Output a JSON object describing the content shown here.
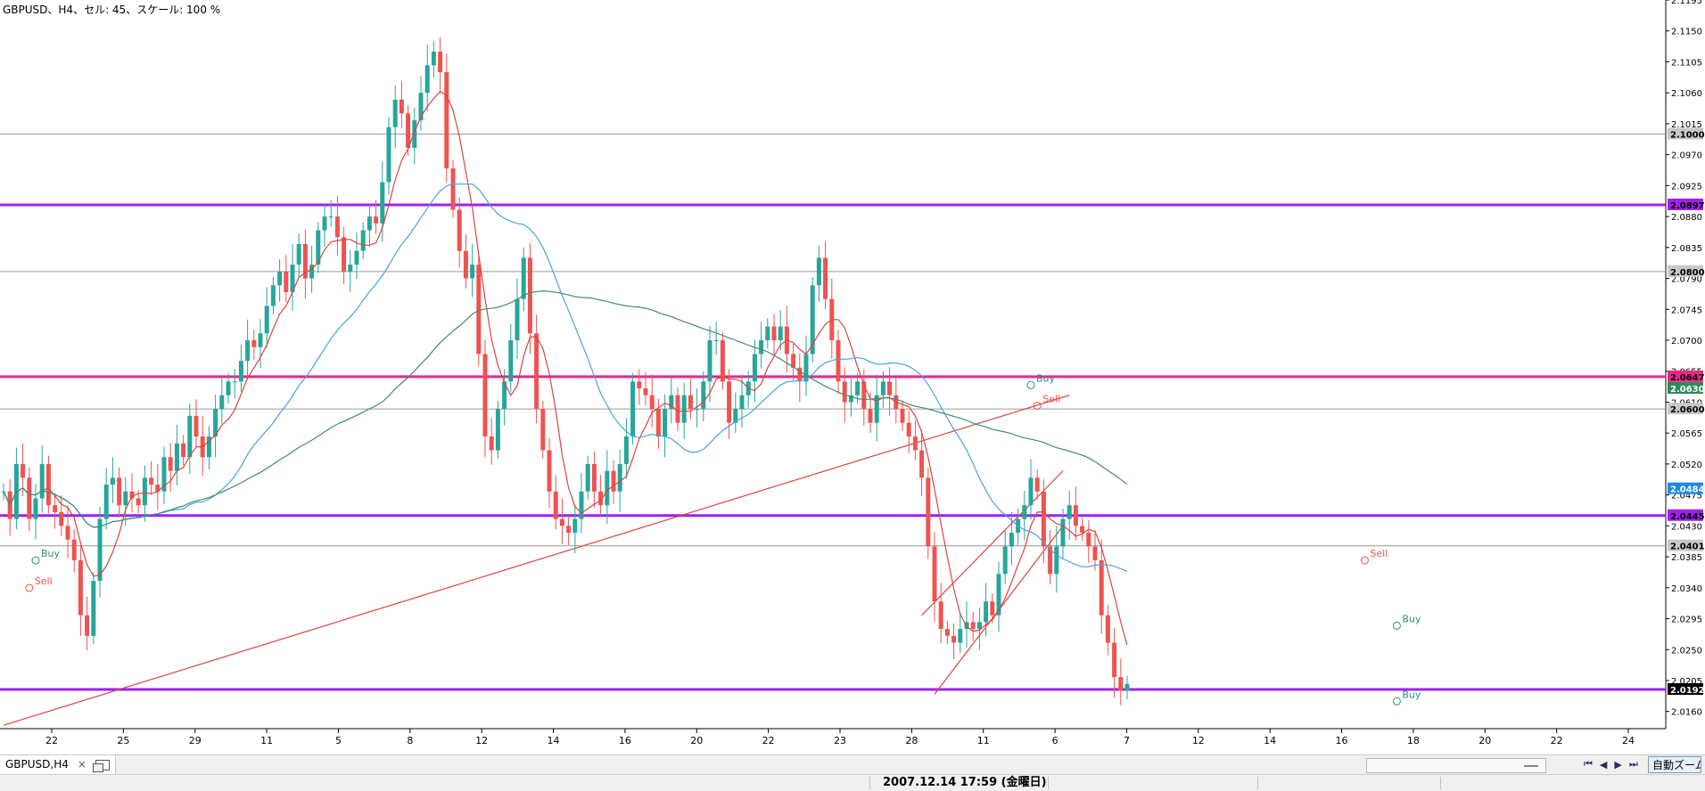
{
  "header": {
    "text": "GBPUSD、H4、セル: 45、スケール: 100 %"
  },
  "tab": {
    "label": "GBPUSD,H4",
    "close_symbol": "×",
    "icon": "window-icon"
  },
  "navigation": {
    "zoom_label": "自動ズーム",
    "buttons": [
      "⏮",
      "◀",
      "▶",
      "⏭"
    ]
  },
  "status": {
    "datetime": "2007.12.14 17:59 (金曜日)"
  },
  "colors": {
    "bull": "#26a69a",
    "bear": "#ef5350",
    "purple": "#a020f0",
    "magenta": "#e8268a",
    "blue_ma": "#4aa3df",
    "green_ma": "#3d8f6e",
    "red_ma": "#d9453d"
  },
  "chart_data": {
    "type": "candlestick",
    "symbol": "GBPUSD",
    "timeframe": "H4",
    "ylim": [
      2.0135,
      2.1195
    ],
    "y_ticks": [
      "2.1195",
      "2.1150",
      "2.1105",
      "2.1060",
      "2.1015",
      "2.0970",
      "2.0925",
      "2.0880",
      "2.0835",
      "2.0790",
      "2.0745",
      "2.0700",
      "2.0655",
      "2.0610",
      "2.0565",
      "2.0520",
      "2.0475",
      "2.0430",
      "2.0385",
      "2.0340",
      "2.0295",
      "2.0250",
      "2.0205",
      "2.0160"
    ],
    "x_ticks": [
      "22",
      "25",
      "29",
      "11",
      "5",
      "8",
      "12",
      "14",
      "16",
      "20",
      "22",
      "23",
      "28",
      "11",
      "6",
      "7",
      "12",
      "14",
      "16",
      "18",
      "20",
      "22",
      "24"
    ],
    "price_labels": [
      {
        "value": 2.1,
        "text": "2.1000",
        "style": "gray"
      },
      {
        "value": 2.0897,
        "text": "2.0897",
        "style": "purple"
      },
      {
        "value": 2.08,
        "text": "2.0800",
        "style": "gray"
      },
      {
        "value": 2.0647,
        "text": "2.0647",
        "style": "magenta"
      },
      {
        "value": 2.063,
        "text": "2.0630",
        "style": "green"
      },
      {
        "value": 2.06,
        "text": "2.0600",
        "style": "gray"
      },
      {
        "value": 2.0484,
        "text": "2.0484",
        "style": "blue"
      },
      {
        "value": 2.0445,
        "text": "2.0445",
        "style": "purple"
      },
      {
        "value": 2.0401,
        "text": "2.0401",
        "style": "gray"
      },
      {
        "value": 2.0192,
        "text": "2.0192",
        "style": "black"
      }
    ],
    "hlines": [
      {
        "value": 2.1,
        "style": "gray"
      },
      {
        "value": 2.0897,
        "style": "purple"
      },
      {
        "value": 2.08,
        "style": "gray"
      },
      {
        "value": 2.0647,
        "style": "magenta"
      },
      {
        "value": 2.06,
        "style": "gray"
      },
      {
        "value": 2.0445,
        "style": "purple"
      },
      {
        "value": 2.0401,
        "style": "gray"
      },
      {
        "value": 2.0192,
        "style": "purple"
      }
    ],
    "signals": [
      {
        "text": "Buy",
        "x_index": 5,
        "price": 2.0385,
        "color": "#2b8f86"
      },
      {
        "text": "Sell",
        "x_index": 4,
        "price": 2.0345,
        "color": "#ef5350"
      },
      {
        "text": "Buy",
        "x_index": 160,
        "price": 2.064,
        "color": "#2b8f86"
      },
      {
        "text": "Sell",
        "x_index": 161,
        "price": 2.061,
        "color": "#ef5350"
      },
      {
        "text": "Sell",
        "x_index": 212,
        "price": 2.0385,
        "color": "#ef5350"
      },
      {
        "text": "Buy",
        "x_index": 217,
        "price": 2.029,
        "color": "#2b8f86"
      },
      {
        "text": "Buy",
        "x_index": 217,
        "price": 2.018,
        "color": "#2b8f86"
      }
    ],
    "lows_highs": [
      2.048,
      2.044,
      2.052,
      2.05,
      2.044,
      2.047,
      2.052,
      2.046,
      2.045,
      2.043,
      2.041,
      2.038,
      2.03,
      2.027,
      2.035,
      2.044,
      2.049,
      2.05,
      2.046,
      2.048,
      2.047,
      2.046,
      2.05,
      2.049,
      2.048,
      2.053,
      2.051,
      2.055,
      2.053,
      2.059,
      2.056,
      2.053,
      2.056,
      2.06,
      2.062,
      2.064,
      2.064,
      2.067,
      2.07,
      2.069,
      2.071,
      2.075,
      2.078,
      2.08,
      2.077,
      2.081,
      2.084,
      2.079,
      2.081,
      2.086,
      2.088,
      2.088,
      2.085,
      2.08,
      2.081,
      2.083,
      2.086,
      2.088,
      2.087,
      2.093,
      2.101,
      2.105,
      2.103,
      2.098,
      2.102,
      2.106,
      2.11,
      2.112,
      2.109,
      2.095,
      2.089,
      2.083,
      2.079,
      2.081,
      2.068,
      2.056,
      2.054,
      2.06,
      2.064,
      2.07,
      2.076,
      2.082,
      2.071,
      2.06,
      2.054,
      2.048,
      2.044,
      2.043,
      2.042,
      2.044,
      2.048,
      2.052,
      2.048,
      2.046,
      2.051,
      2.048,
      2.052,
      2.056,
      2.064,
      2.063,
      2.062,
      2.06,
      2.056,
      2.06,
      2.062,
      2.058,
      2.062,
      2.06,
      2.06,
      2.064,
      2.07,
      2.07,
      2.064,
      2.058,
      2.06,
      2.062,
      2.064,
      2.068,
      2.07,
      2.072,
      2.07,
      2.072,
      2.068,
      2.066,
      2.064,
      2.068,
      2.078,
      2.082,
      2.076,
      2.07,
      2.064,
      2.061,
      2.062,
      2.064,
      2.06,
      2.058,
      2.062,
      2.064,
      2.062,
      2.06,
      2.058,
      2.056,
      2.054,
      2.05,
      2.04,
      2.032,
      2.028,
      2.027,
      2.026,
      2.028,
      2.029,
      2.028,
      2.029,
      2.032,
      2.03,
      2.036,
      2.04,
      2.042,
      2.044,
      2.046,
      2.05,
      2.048,
      2.04,
      2.036,
      2.04,
      2.044,
      2.046,
      2.043,
      2.042,
      2.04,
      2.038,
      2.03,
      2.026,
      2.021,
      2.019,
      2.02
    ],
    "opens_closes": []
  }
}
